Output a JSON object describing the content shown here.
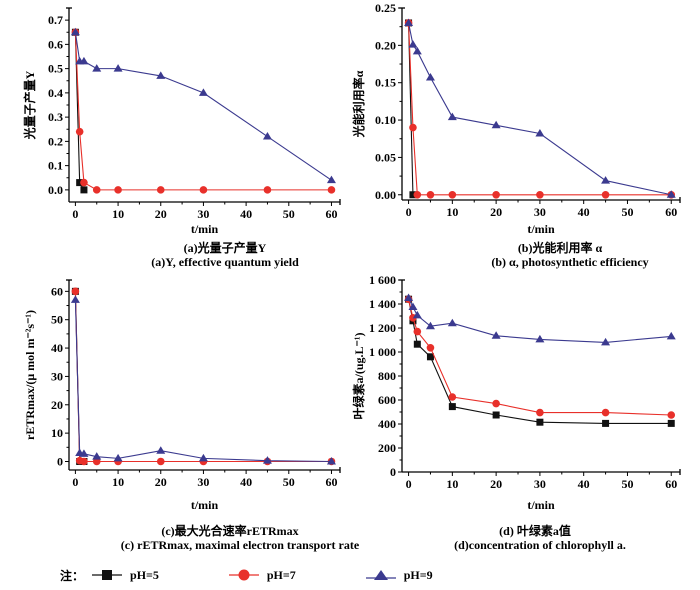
{
  "legend": {
    "prefix": "注：",
    "items": [
      {
        "label": "pH=5",
        "color": "#111111",
        "marker": "square"
      },
      {
        "label": "pH=7",
        "color": "#e8302a",
        "marker": "circle"
      },
      {
        "label": "pH=9",
        "color": "#3b3a8f",
        "marker": "triangle"
      }
    ]
  },
  "captions": {
    "a": {
      "cn": "(a)光量子产量Y",
      "en": "(a)Y, effective quantum yield"
    },
    "b": {
      "cn": "(b)光能利用率 α",
      "en": "(b) α, photosynthetic efficiency"
    },
    "c": {
      "cn": "(c)最大光合速率rETRmax",
      "en": "(c) rETRmax, maximal electron transport rate"
    },
    "d": {
      "cn": "(d) 叶绿素a值",
      "en": "(d)concentration of chlorophyll a."
    }
  },
  "chart_data": [
    {
      "id": "a",
      "type": "line",
      "title": "(a)光量子产量Y",
      "xlabel": "t/min",
      "ylabel": "光量子产量Y",
      "x": [
        0,
        1,
        2,
        5,
        10,
        20,
        30,
        45,
        60
      ],
      "xlim": [
        -1.5,
        62
      ],
      "ylim": [
        -0.05,
        0.75
      ],
      "xticks": [
        0,
        10,
        20,
        30,
        40,
        50,
        60
      ],
      "yticks": [
        0.0,
        0.1,
        0.2,
        0.3,
        0.4,
        0.5,
        0.6,
        0.7
      ],
      "ytick_labels": [
        "0.0",
        "0.1",
        "0.2",
        "0.3",
        "0.4",
        "0.5",
        "0.6",
        "0.7"
      ],
      "series": [
        {
          "name": "pH=5",
          "x": [
            0,
            1,
            2
          ],
          "values": [
            0.65,
            0.03,
            0.0
          ]
        },
        {
          "name": "pH=7",
          "x": [
            0,
            1,
            2,
            5,
            10,
            20,
            30,
            45,
            60
          ],
          "values": [
            0.65,
            0.24,
            0.03,
            0.0,
            0.0,
            0.0,
            0.0,
            0.0,
            0.0
          ]
        },
        {
          "name": "pH=9",
          "x": [
            0,
            1,
            2,
            5,
            10,
            20,
            30,
            45,
            60
          ],
          "values": [
            0.65,
            0.53,
            0.53,
            0.5,
            0.5,
            0.47,
            0.4,
            0.22,
            0.04
          ]
        }
      ]
    },
    {
      "id": "b",
      "type": "line",
      "title": "(b)光能利用率 α",
      "xlabel": "t/min",
      "ylabel": "光能利用率α",
      "xlim": [
        -1.5,
        62
      ],
      "ylim": [
        -0.007,
        0.25
      ],
      "xticks": [
        0,
        10,
        20,
        30,
        40,
        50,
        60
      ],
      "yticks": [
        0.0,
        0.05,
        0.1,
        0.15,
        0.2,
        0.25
      ],
      "ytick_labels": [
        "0.00",
        "0.05",
        "0.10",
        "0.15",
        "0.20",
        "0.25"
      ],
      "series": [
        {
          "name": "pH=5",
          "x": [
            0,
            1
          ],
          "values": [
            0.23,
            0.0
          ]
        },
        {
          "name": "pH=7",
          "x": [
            0,
            1,
            2,
            5,
            10,
            20,
            30,
            45,
            60
          ],
          "values": [
            0.23,
            0.09,
            0.0,
            0.0,
            0.0,
            0.0,
            0.0,
            0.0,
            0.0
          ]
        },
        {
          "name": "pH=9",
          "x": [
            0,
            1,
            2,
            5,
            10,
            20,
            30,
            45,
            60
          ],
          "values": [
            0.23,
            0.201,
            0.192,
            0.157,
            0.104,
            0.093,
            0.082,
            0.019,
            0.0
          ]
        }
      ]
    },
    {
      "id": "c",
      "type": "line",
      "title": "(c)最大光合速率rETRmax",
      "xlabel": "t/min",
      "ylabel": "rETRmax/(μ mol m⁻²s⁻¹)",
      "xlim": [
        -1.5,
        62
      ],
      "ylim": [
        -3,
        64
      ],
      "xticks": [
        0,
        10,
        20,
        30,
        40,
        50,
        60
      ],
      "yticks": [
        0,
        10,
        20,
        30,
        40,
        50,
        60
      ],
      "ytick_labels": [
        "0",
        "10",
        "20",
        "30",
        "40",
        "50",
        "60"
      ],
      "series": [
        {
          "name": "pH=5",
          "x": [
            0,
            1,
            2
          ],
          "values": [
            60,
            0.0,
            0.0
          ]
        },
        {
          "name": "pH=7",
          "x": [
            0,
            1,
            2,
            5,
            10,
            20,
            30,
            45,
            60
          ],
          "values": [
            60,
            0.3,
            0.0,
            0.0,
            0.0,
            0.0,
            0.0,
            0.0,
            0.0
          ]
        },
        {
          "name": "pH=9",
          "x": [
            0,
            1,
            2,
            5,
            10,
            20,
            30,
            45,
            60
          ],
          "values": [
            57,
            3.0,
            2.7,
            1.7,
            1.1,
            3.8,
            1.1,
            0.3,
            0.0
          ]
        }
      ]
    },
    {
      "id": "d",
      "type": "line",
      "title": "(d) 叶绿素a值",
      "xlabel": "t/min",
      "ylabel": "叶绿素a/(ug.L⁻¹)",
      "xlim": [
        -1.5,
        62
      ],
      "ylim": [
        0,
        1600
      ],
      "xticks": [
        0,
        10,
        20,
        30,
        40,
        50,
        60
      ],
      "yticks": [
        0,
        200,
        400,
        600,
        800,
        1000,
        1200,
        1400,
        1600
      ],
      "ytick_labels": [
        "0",
        "200",
        "400",
        "600",
        "800",
        "1 000",
        "1 200",
        "1 400",
        "1 600"
      ],
      "series": [
        {
          "name": "pH=5",
          "x": [
            0,
            1,
            2,
            5,
            10,
            20,
            30,
            45,
            60
          ],
          "values": [
            1440,
            1260,
            1065,
            960,
            545,
            475,
            415,
            405,
            405
          ]
        },
        {
          "name": "pH=7",
          "x": [
            0,
            1,
            2,
            5,
            10,
            20,
            30,
            45,
            60
          ],
          "values": [
            1440,
            1285,
            1170,
            1035,
            625,
            570,
            495,
            495,
            475
          ]
        },
        {
          "name": "pH=9",
          "x": [
            0,
            1,
            2,
            5,
            10,
            20,
            30,
            45,
            60
          ],
          "values": [
            1450,
            1375,
            1305,
            1215,
            1240,
            1135,
            1105,
            1080,
            1130
          ]
        }
      ]
    }
  ]
}
